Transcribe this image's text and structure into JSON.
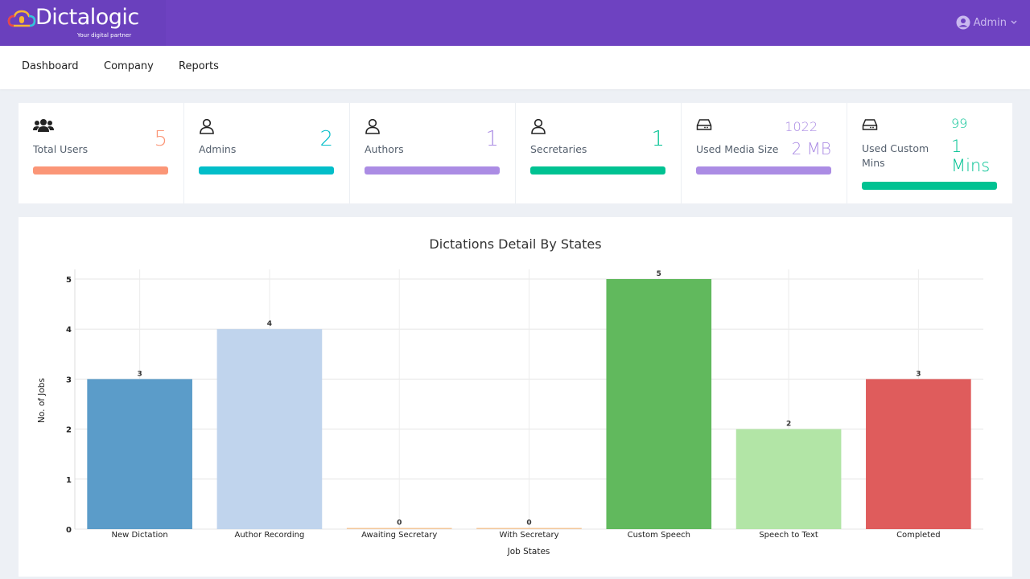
{
  "app": {
    "name": "Dictalogic",
    "tagline": "Your digital partner",
    "brand_color": "#6e42c1"
  },
  "user_menu": {
    "label": "Admin",
    "icon": "user-circle-icon"
  },
  "nav": {
    "items": [
      "Dashboard",
      "Company",
      "Reports"
    ]
  },
  "stats": [
    {
      "label": "Total Users",
      "value": "5",
      "icon": "users-icon",
      "color": "#fb9677",
      "bar_fill": 1
    },
    {
      "label": "Admins",
      "value": "2",
      "icon": "user-icon",
      "color": "#02bec9",
      "bar_fill": 1
    },
    {
      "label": "Authors",
      "value": "1",
      "icon": "user-icon",
      "color": "#ab8ce4",
      "bar_fill": 1
    },
    {
      "label": "Secretaries",
      "value": "1",
      "icon": "user-icon",
      "color": "#00c292",
      "bar_fill": 1
    },
    {
      "label": "Used Media Size",
      "value_top": "1022",
      "value": "2 MB",
      "icon": "hard-drive-icon",
      "color": "#ab8ce4",
      "bar_fill": 1
    },
    {
      "label_line1": "Used Custom",
      "label_line2": "Mins",
      "value_top": "99",
      "value_line1": "1",
      "value_line2": "Mins",
      "icon": "hard-drive-icon",
      "color": "#00c292",
      "bar_fill": 1
    }
  ],
  "chart_data": {
    "type": "bar",
    "title": "Dictations Detail By States",
    "xlabel": "Job States",
    "ylabel": "No. of Jobs",
    "ylim": [
      0,
      5
    ],
    "yticks": [
      0,
      1,
      2,
      3,
      4,
      5
    ],
    "grid": true,
    "categories": [
      "New Dictation",
      "Author Recording",
      "Awaiting Secretary",
      "With Secretary",
      "Custom Speech",
      "Speech to Text",
      "Completed"
    ],
    "values": [
      3,
      4,
      0,
      0,
      5,
      2,
      3
    ],
    "colors": [
      "#5b9cc9",
      "#c0d4ed",
      "#f3c79a",
      "#f3c79a",
      "#61b95d",
      "#b2e5a6",
      "#df5c5c"
    ]
  }
}
